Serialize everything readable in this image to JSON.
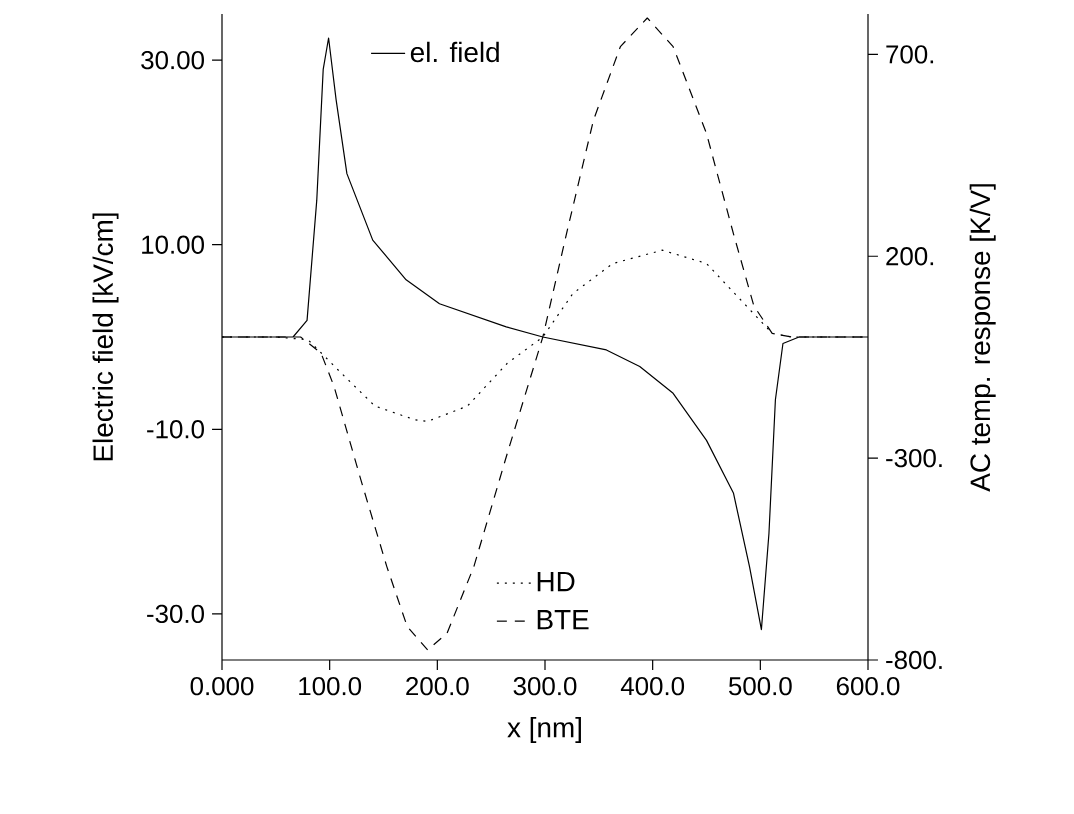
{
  "chart_data": {
    "type": "line",
    "xlabel": "x [nm]",
    "ylabel": "Electric field [kV/cm]",
    "y2label": "AC temp. response [K/V]",
    "xlim": [
      0,
      600
    ],
    "xticks": [
      {
        "value": 0,
        "label": "0.000"
      },
      {
        "value": 100,
        "label": "100.0"
      },
      {
        "value": 200,
        "label": "200.0"
      },
      {
        "value": 300,
        "label": "300.0"
      },
      {
        "value": 400,
        "label": "400.0"
      },
      {
        "value": 500,
        "label": "500.0"
      },
      {
        "value": 600,
        "label": "600.0"
      }
    ],
    "ylim": [
      -35,
      35
    ],
    "yticks": [
      {
        "value": -30,
        "label": "-30.0"
      },
      {
        "value": -10,
        "label": "-10.0"
      },
      {
        "value": 10,
        "label": "10.00"
      },
      {
        "value": 30,
        "label": "30.00"
      }
    ],
    "y2lim": [
      -800,
      800
    ],
    "y2ticks": [
      {
        "value": -800,
        "label": "-800."
      },
      {
        "value": -300,
        "label": "-300."
      },
      {
        "value": 200,
        "label": "200."
      },
      {
        "value": 700,
        "label": "700."
      }
    ],
    "legend": "top",
    "series": [
      {
        "name": "el. field",
        "color": "#000000",
        "line_style": "solid",
        "x": [
          0,
          66,
          79,
          88,
          94,
          99,
          106,
          116,
          140,
          171,
          202,
          264,
          298,
          357,
          388,
          419,
          450,
          475,
          490,
          501,
          508,
          514,
          521,
          536,
          600
        ],
        "values": [
          0,
          0,
          1.8,
          14.8,
          29,
          32.4,
          25.7,
          17.7,
          10.5,
          6.2,
          3.6,
          1.1,
          0,
          -1.4,
          -3.2,
          -6.1,
          -11.2,
          -16.9,
          -24.9,
          -31.7,
          -21.3,
          -6.8,
          -0.7,
          0,
          0
        ]
      },
      {
        "name": "HD",
        "color": "#000000",
        "line_style": "dotted",
        "axis": "y2",
        "x": [
          0,
          50,
          80,
          111,
          142,
          179,
          191,
          228,
          265,
          298,
          326,
          363,
          409,
          450,
          487,
          511,
          529,
          600
        ],
        "values": [
          0,
          0,
          -7,
          -90,
          -171,
          -205,
          -209,
          -171,
          -65,
          0,
          108,
          182,
          215,
          182,
          77,
          9,
          0,
          0
        ]
      },
      {
        "name": "BTE",
        "color": "#000000",
        "line_style": "dashed",
        "axis": "y2",
        "x": [
          0,
          73,
          92,
          104,
          129,
          153,
          172,
          191,
          209,
          234,
          265,
          298,
          320,
          345,
          370,
          395,
          419,
          450,
          475,
          494,
          511,
          529,
          600
        ],
        "values": [
          0,
          0,
          -40,
          -122,
          -354,
          -568,
          -717,
          -775,
          -734,
          -568,
          -288,
          0,
          256,
          537,
          719,
          790,
          719,
          504,
          256,
          77,
          9,
          0,
          0
        ]
      }
    ]
  }
}
